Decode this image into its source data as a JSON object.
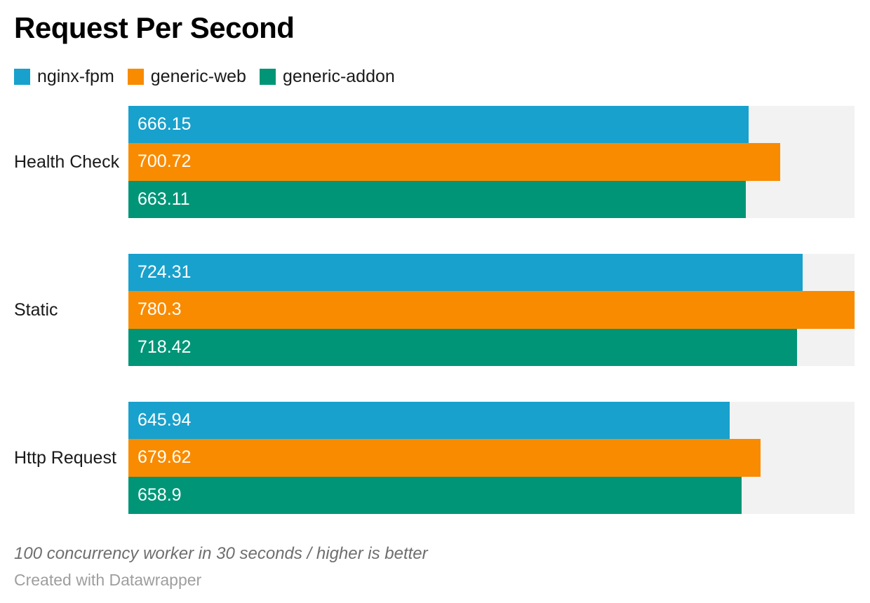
{
  "header": {
    "title": "Request Per Second"
  },
  "chart_data": {
    "type": "bar",
    "orientation": "horizontal",
    "title": "Request Per Second",
    "xlabel": "",
    "ylabel": "",
    "xlim": [
      0,
      780.3
    ],
    "grid": false,
    "legend_position": "top",
    "track_color": "#f2f2f2",
    "value_labels": "inside-start",
    "categories": [
      "Health Check",
      "Static",
      "Http Request"
    ],
    "series": [
      {
        "name": "nginx-fpm",
        "color": "#18a1cd",
        "values": [
          666.15,
          724.31,
          645.94
        ]
      },
      {
        "name": "generic-web",
        "color": "#f98b00",
        "values": [
          700.72,
          780.3,
          679.62
        ]
      },
      {
        "name": "generic-addon",
        "color": "#009577",
        "values": [
          663.11,
          718.42,
          658.9
        ]
      }
    ]
  },
  "footer": {
    "note": "100 concurrency worker in 30 seconds / higher is better",
    "attribution": "Created with Datawrapper"
  }
}
